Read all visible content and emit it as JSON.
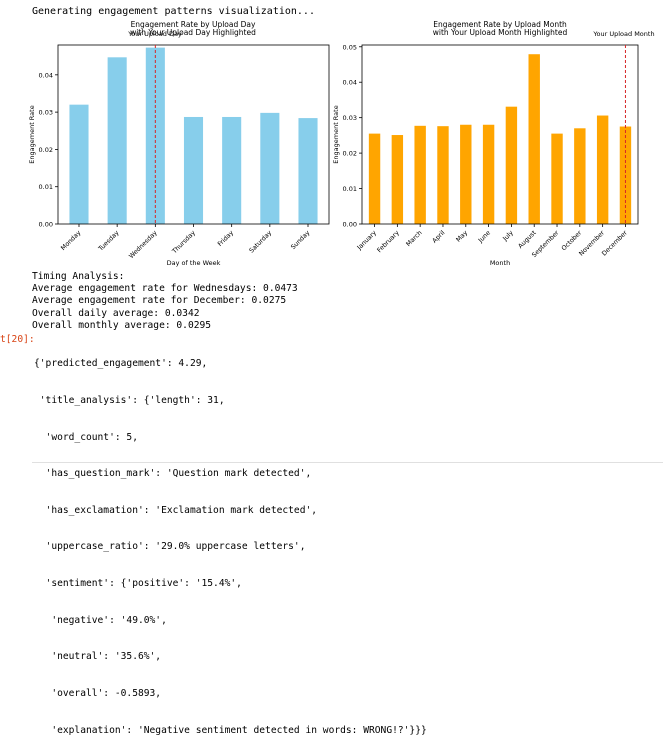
{
  "status_text": "Generating engagement patterns visualization...",
  "colors": {
    "day_bar": "#87ceeb",
    "month_bar": "#ffa500",
    "highlight_line": "#d62728",
    "prompt": "#d84315"
  },
  "chart_data": [
    {
      "type": "bar",
      "title_line1": "Engagement Rate by Upload Day",
      "title_line2": "with Your Upload Day Highlighted",
      "highlight_label": "Your Upload Day",
      "highlight_category": "Wednesday",
      "xlabel": "Day of the Week",
      "ylabel": "Engagement Rate",
      "categories": [
        "Monday",
        "Tuesday",
        "Wednesday",
        "Thursday",
        "Friday",
        "Saturday",
        "Sunday"
      ],
      "values": [
        0.032,
        0.0447,
        0.0473,
        0.0287,
        0.0287,
        0.0298,
        0.0284
      ],
      "ylim": [
        0,
        0.048
      ],
      "yticks": [
        0.0,
        0.01,
        0.02,
        0.03,
        0.04
      ],
      "ytick_labels": [
        "0.00",
        "0.01",
        "0.02",
        "0.03",
        "0.04"
      ]
    },
    {
      "type": "bar",
      "title_line1": "Engagement Rate by Upload Month",
      "title_line2": "with Your Upload Month Highlighted",
      "highlight_label": "Your Upload Month",
      "highlight_category": "December",
      "xlabel": "Month",
      "ylabel": "Engagement Rate",
      "categories": [
        "January",
        "February",
        "March",
        "April",
        "May",
        "June",
        "July",
        "August",
        "September",
        "October",
        "November",
        "December"
      ],
      "values": [
        0.0255,
        0.0251,
        0.0277,
        0.0276,
        0.028,
        0.028,
        0.0331,
        0.0479,
        0.0255,
        0.027,
        0.0306,
        0.0275
      ],
      "ylim": [
        0,
        0.0505
      ],
      "yticks": [
        0.0,
        0.01,
        0.02,
        0.03,
        0.04,
        0.05
      ],
      "ytick_labels": [
        "0.00",
        "0.01",
        "0.02",
        "0.03",
        "0.04",
        "0.05"
      ]
    }
  ],
  "timing": {
    "header": "Timing Analysis:",
    "day_avg": "Average engagement rate for Wednesdays: 0.0473",
    "month_avg": "Average engagement rate for December: 0.0275",
    "daily_avg": "Overall daily average: 0.0342",
    "monthly_avg": "Overall monthly average: 0.0295"
  },
  "output_prompt": "t[20]:",
  "result_lines": [
    "{'predicted_engagement': 4.29,",
    " 'title_analysis': {'length': 31,",
    "  'word_count': 5,",
    "  'has_question_mark': 'Question mark detected',",
    "  'has_exclamation': 'Exclamation mark detected',",
    "  'uppercase_ratio': '29.0% uppercase letters',",
    "  'sentiment': {'positive': '15.4%',",
    "   'negative': '49.0%',",
    "   'neutral': '35.6%',",
    "   'overall': -0.5893,",
    "   'explanation': 'Negative sentiment detected in words: WRONG!?'}}}"
  ]
}
